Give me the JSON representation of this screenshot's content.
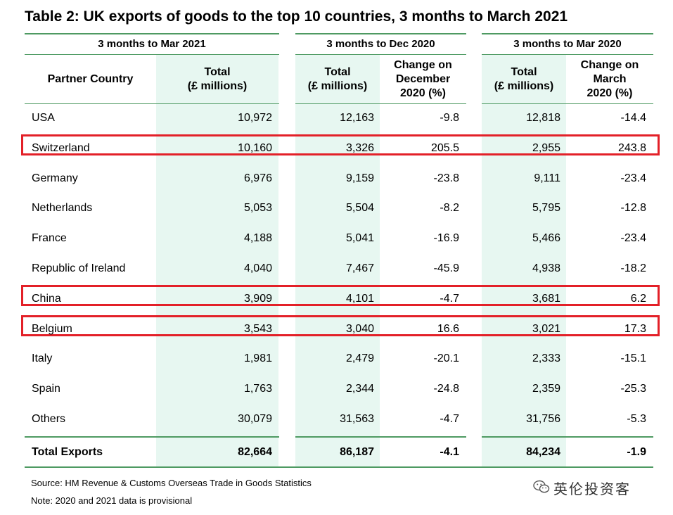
{
  "title": "Table 2: UK exports of goods to the top 10 countries, 3 months to March 2021",
  "groups": [
    "3 months to Mar 2021",
    "3 months to Dec 2020",
    "3 months to Mar 2020"
  ],
  "headers": {
    "partner": "Partner Country",
    "total_2021": "Total\n(£ millions)",
    "total_dec2020": "Total\n(£ millions)",
    "change_dec2020": "Change on\nDecember\n2020 (%)",
    "total_mar2020": "Total\n(£ millions)",
    "change_mar2020": "Change on\nMarch\n2020 (%)"
  },
  "rows": [
    {
      "country": "USA",
      "t2021": "10,972",
      "tdec": "12,163",
      "cdec": "-9.8",
      "tmar": "12,818",
      "cmar": "-14.4",
      "highlight": false
    },
    {
      "country": "Switzerland",
      "t2021": "10,160",
      "tdec": "3,326",
      "cdec": "205.5",
      "tmar": "2,955",
      "cmar": "243.8",
      "highlight": true
    },
    {
      "country": "Germany",
      "t2021": "6,976",
      "tdec": "9,159",
      "cdec": "-23.8",
      "tmar": "9,111",
      "cmar": "-23.4",
      "highlight": false
    },
    {
      "country": "Netherlands",
      "t2021": "5,053",
      "tdec": "5,504",
      "cdec": "-8.2",
      "tmar": "5,795",
      "cmar": "-12.8",
      "highlight": false
    },
    {
      "country": "France",
      "t2021": "4,188",
      "tdec": "5,041",
      "cdec": "-16.9",
      "tmar": "5,466",
      "cmar": "-23.4",
      "highlight": false
    },
    {
      "country": "Republic of Ireland",
      "t2021": "4,040",
      "tdec": "7,467",
      "cdec": "-45.9",
      "tmar": "4,938",
      "cmar": "-18.2",
      "highlight": false
    },
    {
      "country": "China",
      "t2021": "3,909",
      "tdec": "4,101",
      "cdec": "-4.7",
      "tmar": "3,681",
      "cmar": "6.2",
      "highlight": true
    },
    {
      "country": "Belgium",
      "t2021": "3,543",
      "tdec": "3,040",
      "cdec": "16.6",
      "tmar": "3,021",
      "cmar": "17.3",
      "highlight": true
    },
    {
      "country": "Italy",
      "t2021": "1,981",
      "tdec": "2,479",
      "cdec": "-20.1",
      "tmar": "2,333",
      "cmar": "-15.1",
      "highlight": false
    },
    {
      "country": "Spain",
      "t2021": "1,763",
      "tdec": "2,344",
      "cdec": "-24.8",
      "tmar": "2,359",
      "cmar": "-25.3",
      "highlight": false
    },
    {
      "country": "Others",
      "t2021": "30,079",
      "tdec": "31,563",
      "cdec": "-4.7",
      "tmar": "31,756",
      "cmar": "-5.3",
      "highlight": false
    }
  ],
  "total_row": {
    "country": "Total Exports",
    "t2021": "82,664",
    "tdec": "86,187",
    "cdec": "-4.1",
    "tmar": "84,234",
    "cmar": "-1.9"
  },
  "notes": [
    "Source: HM Revenue & Customs Overseas Trade in Goods Statistics",
    "Note: 2020 and 2021 data is provisional"
  ],
  "watermark": "英伦投资客",
  "watermark_icon": "wechat-icon",
  "colors": {
    "rule_green": "#4e9a62",
    "shade_green": "#e7f7f1",
    "highlight_red": "#e32028"
  }
}
